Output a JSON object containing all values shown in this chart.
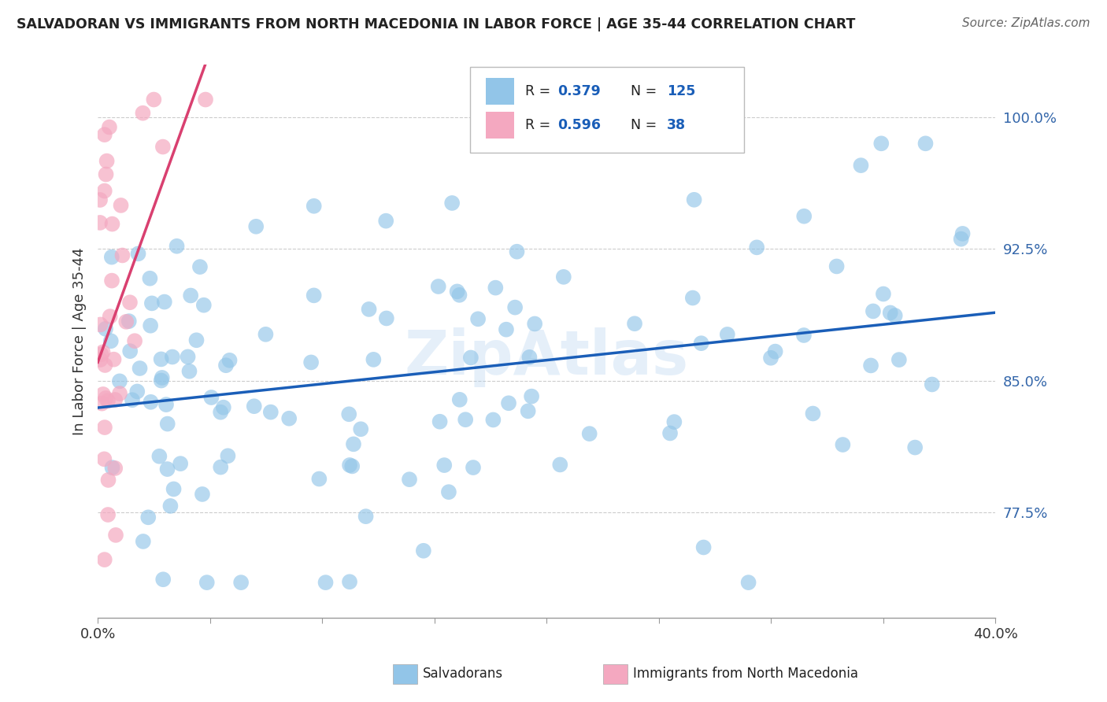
{
  "title": "SALVADORAN VS IMMIGRANTS FROM NORTH MACEDONIA IN LABOR FORCE | AGE 35-44 CORRELATION CHART",
  "source": "Source: ZipAtlas.com",
  "ylabel": "In Labor Force | Age 35-44",
  "y_tick_labels": [
    "77.5%",
    "85.0%",
    "92.5%",
    "100.0%"
  ],
  "y_tick_values": [
    0.775,
    0.85,
    0.925,
    1.0
  ],
  "x_min": 0.0,
  "x_max": 0.4,
  "y_min": 0.715,
  "y_max": 1.03,
  "blue_R": 0.379,
  "blue_N": 125,
  "pink_R": 0.596,
  "pink_N": 38,
  "blue_color": "#92C5E8",
  "pink_color": "#F4A8C0",
  "blue_line_color": "#1A5EB8",
  "pink_line_color": "#D94070",
  "legend_label_blue": "Salvadorans",
  "legend_label_pink": "Immigrants from North Macedonia",
  "watermark": "ZipAtlas"
}
